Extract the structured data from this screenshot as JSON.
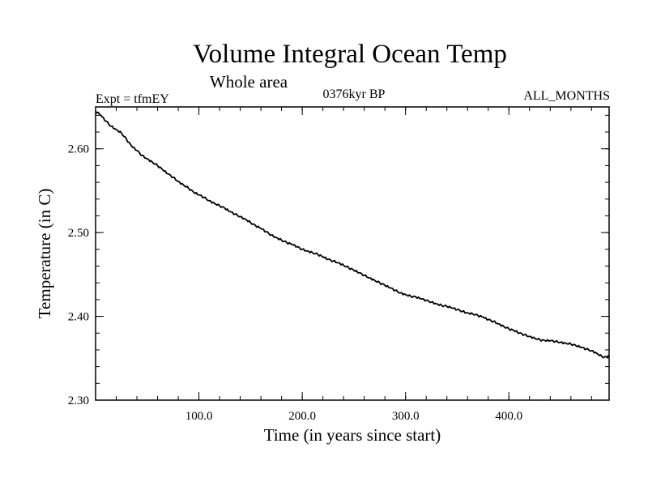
{
  "chart_data": {
    "type": "line",
    "title": "Volume Integral Ocean Temp",
    "subtitle": "Whole area",
    "annotations": {
      "left": "Expt = tfmEY",
      "center": "0376kyr BP",
      "right": "ALL_MONTHS"
    },
    "xlabel": "Time (in years since start)",
    "ylabel": "Temperature (in C)",
    "xlim": [
      0,
      497
    ],
    "ylim": [
      2.3,
      2.65
    ],
    "x_ticks": [
      100,
      200,
      300,
      400
    ],
    "x_tick_labels": [
      "100.0",
      "200.0",
      "300.0",
      "400.0"
    ],
    "y_ticks": [
      2.3,
      2.4,
      2.5,
      2.6
    ],
    "y_tick_labels": [
      "2.30",
      "2.40",
      "2.50",
      "2.60"
    ],
    "x_minor_step": 20,
    "y_minor_step": 0.02,
    "grid": false,
    "legend": "none",
    "line_color": "#000000",
    "series": [
      {
        "x": [
          0,
          5,
          10,
          15,
          20,
          25,
          30,
          35,
          40,
          45,
          50,
          55,
          60,
          65,
          70,
          75,
          80,
          85,
          90,
          95,
          100,
          105,
          110,
          115,
          120,
          125,
          130,
          135,
          140,
          145,
          150,
          155,
          160,
          165,
          170,
          175,
          180,
          185,
          190,
          195,
          200,
          205,
          210,
          215,
          220,
          225,
          230,
          235,
          240,
          245,
          250,
          255,
          260,
          265,
          270,
          275,
          280,
          285,
          290,
          295,
          300,
          305,
          310,
          315,
          320,
          325,
          330,
          335,
          340,
          345,
          350,
          355,
          360,
          365,
          370,
          375,
          380,
          385,
          390,
          395,
          400,
          405,
          410,
          415,
          420,
          425,
          430,
          435,
          440,
          445,
          450,
          455,
          460,
          465,
          470,
          475,
          480,
          485,
          490,
          495,
          497
        ],
        "y": [
          2.645,
          2.64,
          2.633,
          2.627,
          2.623,
          2.619,
          2.611,
          2.603,
          2.598,
          2.592,
          2.588,
          2.584,
          2.58,
          2.575,
          2.57,
          2.566,
          2.561,
          2.557,
          2.553,
          2.548,
          2.545,
          2.542,
          2.538,
          2.535,
          2.532,
          2.529,
          2.525,
          2.522,
          2.519,
          2.516,
          2.512,
          2.508,
          2.505,
          2.501,
          2.497,
          2.494,
          2.491,
          2.488,
          2.486,
          2.483,
          2.48,
          2.478,
          2.476,
          2.474,
          2.471,
          2.468,
          2.466,
          2.464,
          2.461,
          2.458,
          2.455,
          2.452,
          2.449,
          2.446,
          2.443,
          2.44,
          2.437,
          2.434,
          2.431,
          2.428,
          2.426,
          2.424,
          2.423,
          2.421,
          2.419,
          2.417,
          2.415,
          2.413,
          2.412,
          2.41,
          2.408,
          2.406,
          2.404,
          2.403,
          2.401,
          2.399,
          2.396,
          2.394,
          2.391,
          2.388,
          2.385,
          2.383,
          2.38,
          2.378,
          2.376,
          2.374,
          2.372,
          2.371,
          2.371,
          2.37,
          2.369,
          2.368,
          2.367,
          2.365,
          2.363,
          2.361,
          2.359,
          2.356,
          2.352,
          2.351,
          2.353
        ]
      }
    ]
  }
}
